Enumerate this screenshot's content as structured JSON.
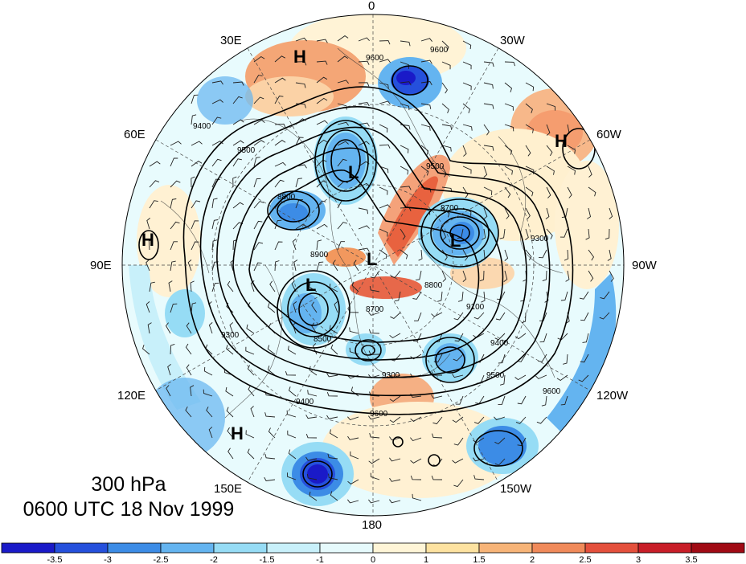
{
  "title": {
    "level": "300 hPa",
    "time": "0600 UTC 18 Nov 1999"
  },
  "longitude_labels": [
    {
      "id": "0",
      "text": "0"
    },
    {
      "id": "30W",
      "text": "30W"
    },
    {
      "id": "60W",
      "text": "60W"
    },
    {
      "id": "90W",
      "text": "90W"
    },
    {
      "id": "120W",
      "text": "120W"
    },
    {
      "id": "150W",
      "text": "150W"
    },
    {
      "id": "180",
      "text": "180"
    },
    {
      "id": "150E",
      "text": "150E"
    },
    {
      "id": "120E",
      "text": "120E"
    },
    {
      "id": "90E",
      "text": "90E"
    },
    {
      "id": "60E",
      "text": "60E"
    },
    {
      "id": "30E",
      "text": "30E"
    }
  ],
  "pressure_centers": [
    "H",
    "H",
    "H",
    "H",
    "L",
    "L",
    "L",
    "L"
  ],
  "contour_labels": [
    "9600",
    "9500",
    "9400",
    "9300",
    "9200",
    "9100",
    "9000",
    "8900",
    "8800",
    "8700",
    "8600",
    "8500"
  ],
  "colorbar": {
    "colors": [
      "#1a1ac8",
      "#2550dc",
      "#3c8ce6",
      "#64b4f0",
      "#96dcf5",
      "#c8f0fa",
      "#e6fafc",
      "#fff5d7",
      "#fde2a0",
      "#f7b478",
      "#f08a5a",
      "#e4503c",
      "#c81e28",
      "#a00a14"
    ],
    "tick_labels": [
      "-3.5",
      "-3",
      "-2.5",
      "-2",
      "-1.5",
      "-1",
      "0",
      "1",
      "1.5",
      "2",
      "2.5",
      "3",
      "3.5"
    ]
  }
}
